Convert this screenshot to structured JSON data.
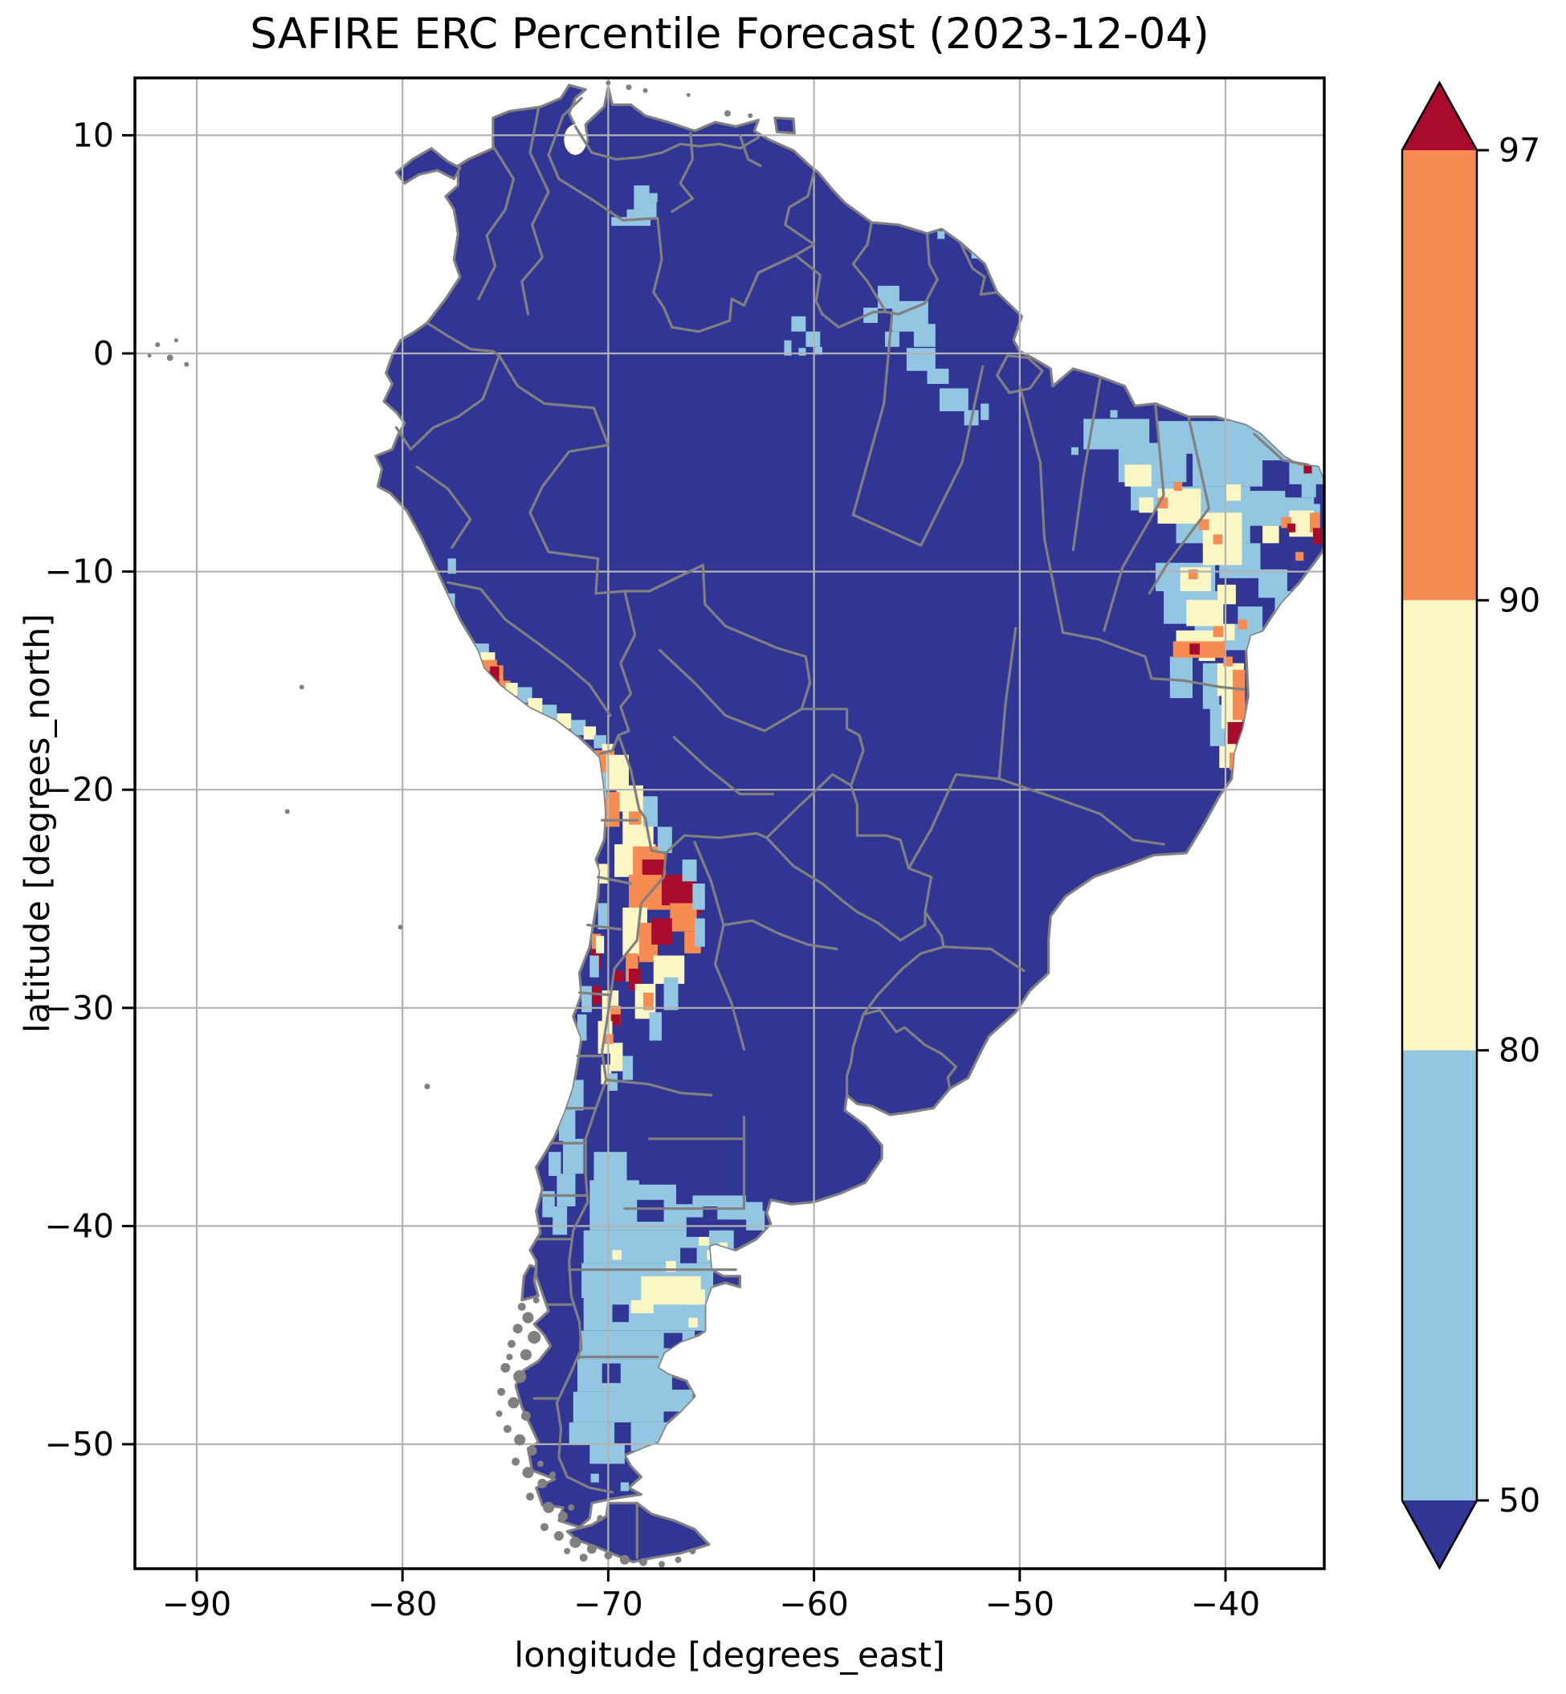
{
  "figure": {
    "title": "SAFIRE ERC Percentile Forecast (2023-12-04)",
    "xlabel": "longitude [degrees_east]",
    "ylabel": "latitude [degrees_north]"
  },
  "chart_data": {
    "type": "heatmap",
    "subtype": "geographic raster (pcolormesh) of ERC percentile classes over South America with admin boundaries",
    "title": "SAFIRE ERC Percentile Forecast (2023-12-04)",
    "date": "2023-12-04",
    "x_axis": {
      "label": "longitude [degrees_east]",
      "ticks": [
        -90,
        -80,
        -70,
        -60,
        -50,
        -40
      ],
      "range": [
        -93.0,
        -35.2
      ]
    },
    "y_axis": {
      "label": "latitude [degrees_north]",
      "ticks": [
        10,
        0,
        -10,
        -20,
        -30,
        -40,
        -50
      ],
      "range": [
        -55.7,
        12.6
      ]
    },
    "grid": true,
    "colorbar": {
      "tick_labels": [
        "97",
        "90",
        "80",
        "50"
      ],
      "levels": [
        50,
        80,
        90,
        97
      ],
      "extend": "both",
      "classes": [
        {
          "range": ">97",
          "color": "#a80b2b"
        },
        {
          "range": "90-97",
          "color": "#f68c51"
        },
        {
          "range": "80-90",
          "color": "#fbf7c4"
        },
        {
          "range": "50-80",
          "color": "#93c6e0"
        },
        {
          "range": "<50",
          "color": "#313695"
        }
      ]
    },
    "base_colors": {
      "land_below_50": "#313695",
      "boundaries": "#808080",
      "gridlines": "#b3b3b3",
      "ocean": "#ffffff",
      "spine": "#000000"
    },
    "hotspots": [
      "Atacama / NW Argentina Andes (about 66-71W, 18-33S): large 90-97 and >97 cluster",
      "Interior Northeast Brazil (about 36-47W, 3-18S): broad 50-90 area with 90-97 and >97 spots",
      "Coastal Bahia (about 39-40W, 14-18S): orange strip with >97 cells near 17.5S",
      "Southern Peru coast (about 75-76W, 14-15S): small orange / >97 cluster",
      "Patagonia (about 63-72W, 37-50S): broad 50-80 area with 80-90 patches near 42-43S",
      "Guianas / Amapa, southern Venezuela and Caribbean Colombia: scattered 50-80 cells"
    ],
    "cells": [
      [
        "B",
        -77.95,
        11.3,
        1.05,
        0.8
      ],
      [
        "B",
        -77.6,
        10.5,
        0.7,
        0.7
      ],
      [
        "B",
        -78.3,
        10.9,
        0.35,
        0.35
      ],
      [
        "B",
        -76.95,
        10.15,
        0.35,
        0.35
      ],
      [
        "B",
        -68.75,
        7.7,
        0.75,
        1.1
      ],
      [
        "B",
        -69.1,
        6.6,
        1.15,
        0.75
      ],
      [
        "B",
        -68.4,
        6.95,
        0.75,
        0.75
      ],
      [
        "B",
        -69.85,
        6.25,
        0.75,
        0.4
      ],
      [
        "B",
        -68.0,
        7.35,
        0.4,
        0.4
      ],
      [
        "B",
        -61.1,
        1.7,
        0.7,
        0.7
      ],
      [
        "B",
        -60.4,
        1.0,
        0.7,
        0.7
      ],
      [
        "B",
        -61.45,
        0.6,
        0.35,
        0.7
      ],
      [
        "B",
        -59.95,
        0.3,
        0.35,
        0.35
      ],
      [
        "B",
        -60.75,
        0.25,
        0.35,
        0.35
      ],
      [
        "B",
        -56.9,
        3.1,
        1.05,
        1.05
      ],
      [
        "B",
        -56.2,
        2.4,
        1.75,
        1.4
      ],
      [
        "B",
        -57.6,
        2.1,
        0.7,
        0.7
      ],
      [
        "B",
        -55.15,
        1.35,
        1.05,
        1.05
      ],
      [
        "B",
        -56.55,
        1.0,
        0.7,
        0.7
      ],
      [
        "B",
        -55.5,
        0.25,
        1.4,
        1.05
      ],
      [
        "B",
        -54.5,
        -0.7,
        1.05,
        0.7
      ],
      [
        "B",
        -53.9,
        -1.6,
        1.4,
        1.05
      ],
      [
        "B",
        -52.7,
        -2.6,
        0.7,
        0.7
      ],
      [
        "B",
        -51.9,
        -2.3,
        0.4,
        0.75
      ],
      [
        "B",
        -54.0,
        5.6,
        0.35,
        0.35
      ],
      [
        "B",
        -52.35,
        4.7,
        0.35,
        0.35
      ],
      [
        "B",
        -46.9,
        -3.0,
        3.2,
        1.4
      ],
      [
        "B",
        -45.2,
        -4.1,
        3.3,
        1.8
      ],
      [
        "B",
        -43.3,
        -3.1,
        4.6,
        1.5
      ],
      [
        "B",
        -41.6,
        -4.5,
        3.4,
        1.6
      ],
      [
        "B",
        -38.8,
        -3.5,
        2.0,
        1.4
      ],
      [
        "B",
        -36.9,
        -4.6,
        1.7,
        1.4
      ],
      [
        "B",
        -44.6,
        -5.9,
        2.1,
        1.3
      ],
      [
        "B",
        -42.4,
        -6.1,
        3.6,
        2.6
      ],
      [
        "B",
        -38.9,
        -6.3,
        1.8,
        1.6
      ],
      [
        "B",
        -37.3,
        -6.6,
        1.6,
        1.2
      ],
      [
        "B",
        -40.3,
        -8.7,
        2.0,
        1.6
      ],
      [
        "B",
        -43.4,
        -9.6,
        2.9,
        1.3
      ],
      [
        "B",
        -43.0,
        -10.9,
        2.6,
        1.5
      ],
      [
        "B",
        -41.5,
        -12.4,
        2.9,
        1.2
      ],
      [
        "B",
        -38.4,
        -9.9,
        1.4,
        1.3
      ],
      [
        "B",
        -37.6,
        -10.9,
        1.1,
        1.1
      ],
      [
        "B",
        -39.4,
        -11.6,
        1.2,
        1.7
      ],
      [
        "B",
        -42.7,
        -13.9,
        1.1,
        1.9
      ],
      [
        "B",
        -41.1,
        -14.2,
        0.8,
        2.1
      ],
      [
        "B",
        -40.75,
        -16.1,
        0.7,
        1.9
      ],
      [
        "B",
        -47.5,
        -4.3,
        0.35,
        0.35
      ],
      [
        "B",
        -45.6,
        -2.6,
        0.35,
        0.35
      ],
      [
        "B",
        -36.3,
        -5.9,
        0.7,
        0.7
      ],
      [
        "B",
        -35.9,
        -6.9,
        0.5,
        0.5
      ],
      [
        "Y",
        -44.9,
        -5.1,
        1.3,
        1.0
      ],
      [
        "Y",
        -43.3,
        -6.2,
        2.1,
        1.6
      ],
      [
        "Y",
        -41.1,
        -7.3,
        1.9,
        2.4
      ],
      [
        "Y",
        -42.2,
        -9.8,
        1.5,
        1.1
      ],
      [
        "Y",
        -41.9,
        -11.3,
        1.8,
        1.2
      ],
      [
        "Y",
        -40.4,
        -10.6,
        0.9,
        0.9
      ],
      [
        "Y",
        -42.4,
        -12.7,
        2.3,
        0.6
      ],
      [
        "Y",
        -40.3,
        -12.4,
        0.75,
        0.75
      ],
      [
        "Y",
        -36.9,
        -7.2,
        1.2,
        1.2
      ],
      [
        "Y",
        -38.2,
        -7.9,
        0.8,
        0.8
      ],
      [
        "Y",
        -40.0,
        -6.0,
        0.75,
        0.75
      ],
      [
        "Y",
        -44.2,
        -6.6,
        0.7,
        0.7
      ],
      [
        "Y",
        -40.4,
        -14.2,
        1.3,
        1.5
      ],
      [
        "Y",
        -40.2,
        -15.6,
        1.0,
        1.6
      ],
      [
        "Y",
        -40.0,
        -17.1,
        0.9,
        1.3
      ],
      [
        "Y",
        -41.3,
        -13.3,
        0.8,
        0.8
      ],
      [
        "Y",
        -40.3,
        -18.0,
        0.5,
        1.0
      ],
      [
        "O",
        -42.55,
        -13.2,
        2.5,
        0.75
      ],
      [
        "R",
        -41.75,
        -13.3,
        0.5,
        0.5
      ],
      [
        "O",
        -40.6,
        -12.5,
        0.5,
        0.5
      ],
      [
        "O",
        -43.3,
        -6.6,
        0.5,
        0.5
      ],
      [
        "O",
        -42.5,
        -5.9,
        0.4,
        0.4
      ],
      [
        "O",
        -41.3,
        -7.6,
        0.5,
        0.5
      ],
      [
        "O",
        -40.6,
        -8.3,
        0.45,
        0.45
      ],
      [
        "O",
        -41.8,
        -9.9,
        0.45,
        0.45
      ],
      [
        "O",
        -37.3,
        -7.5,
        0.5,
        0.5
      ],
      [
        "R",
        -37.0,
        -7.8,
        0.4,
        0.4
      ],
      [
        "O",
        -35.9,
        -7.3,
        0.5,
        0.9
      ],
      [
        "R",
        -35.75,
        -8.0,
        0.45,
        0.75
      ],
      [
        "O",
        -36.6,
        -9.1,
        0.4,
        0.4
      ],
      [
        "O",
        -39.65,
        -14.5,
        0.6,
        2.3
      ],
      [
        "O",
        -39.4,
        -12.2,
        0.45,
        0.45
      ],
      [
        "R",
        -39.9,
        -16.9,
        1.0,
        1.0
      ],
      [
        "R",
        -39.5,
        -17.8,
        0.6,
        0.5
      ],
      [
        "O",
        -39.8,
        -18.3,
        0.55,
        0.8
      ],
      [
        "O",
        -40.1,
        -13.9,
        0.45,
        0.45
      ],
      [
        "O",
        -36.5,
        -4.7,
        0.45,
        0.45
      ],
      [
        "R",
        -36.2,
        -5.1,
        0.4,
        0.4
      ],
      [
        "B",
        -76.6,
        -13.3,
        0.8,
        0.8
      ],
      [
        "Y",
        -76.2,
        -13.7,
        0.7,
        0.7
      ],
      [
        "O",
        -76.15,
        -14.05,
        0.75,
        0.5
      ],
      [
        "O",
        -75.6,
        -14.3,
        0.5,
        0.9
      ],
      [
        "R",
        -75.75,
        -14.35,
        0.45,
        0.8
      ],
      [
        "O",
        -75.2,
        -15.0,
        0.45,
        0.45
      ],
      [
        "Y",
        -75.0,
        -15.1,
        0.6,
        0.6
      ],
      [
        "B",
        -74.4,
        -15.3,
        0.7,
        0.7
      ],
      [
        "Y",
        -73.9,
        -15.8,
        0.7,
        0.7
      ],
      [
        "B",
        -73.2,
        -16.1,
        0.7,
        0.7
      ],
      [
        "Y",
        -72.5,
        -16.5,
        0.7,
        0.7
      ],
      [
        "B",
        -71.8,
        -16.8,
        0.7,
        0.7
      ],
      [
        "Y",
        -71.2,
        -17.1,
        0.6,
        0.6
      ],
      [
        "B",
        -70.7,
        -17.5,
        0.6,
        0.6
      ],
      [
        "Y",
        -70.3,
        -17.9,
        0.55,
        0.55
      ],
      [
        "B",
        -77.95,
        -11.0,
        0.5,
        0.7
      ],
      [
        "B",
        -77.8,
        -9.4,
        0.4,
        0.7
      ],
      [
        "O",
        -70.7,
        -18.2,
        1.0,
        1.3
      ],
      [
        "Y",
        -70.1,
        -18.4,
        1.1,
        1.6
      ],
      [
        "Y",
        -69.6,
        -19.8,
        1.3,
        1.2
      ],
      [
        "O",
        -70.35,
        -20.1,
        0.9,
        1.6
      ],
      [
        "Y",
        -69.3,
        -21.0,
        1.5,
        1.6
      ],
      [
        "O",
        -69.0,
        -21.0,
        0.6,
        0.6
      ],
      [
        "Y",
        -69.7,
        -22.5,
        2.0,
        1.5
      ],
      [
        "O",
        -68.8,
        -22.6,
        1.6,
        1.3
      ],
      [
        "R",
        -68.35,
        -23.2,
        1.1,
        0.9
      ],
      [
        "O",
        -69.0,
        -23.9,
        2.0,
        1.6
      ],
      [
        "R",
        -67.4,
        -23.9,
        1.6,
        1.4
      ],
      [
        "R",
        -66.6,
        -24.4,
        1.1,
        1.3
      ],
      [
        "O",
        -67.0,
        -25.2,
        1.3,
        1.3
      ],
      [
        "Y",
        -69.3,
        -25.4,
        1.2,
        2.2
      ],
      [
        "O",
        -68.5,
        -26.1,
        0.9,
        1.8
      ],
      [
        "R",
        -67.9,
        -25.9,
        1.0,
        1.2
      ],
      [
        "O",
        -66.3,
        -26.5,
        0.8,
        1.0
      ],
      [
        "Y",
        -67.8,
        -27.6,
        1.5,
        1.3
      ],
      [
        "O",
        -69.15,
        -27.5,
        0.6,
        1.3
      ],
      [
        "R",
        -69.0,
        -28.2,
        0.6,
        1.0
      ],
      [
        "Y",
        -68.7,
        -28.9,
        1.0,
        1.6
      ],
      [
        "O",
        -68.3,
        -29.3,
        0.5,
        0.8
      ],
      [
        "R",
        -69.75,
        -28.3,
        0.5,
        0.5
      ],
      [
        "Y",
        -70.3,
        -29.2,
        0.8,
        1.4
      ],
      [
        "O",
        -69.9,
        -29.9,
        0.5,
        0.9
      ],
      [
        "R",
        -69.85,
        -30.3,
        0.45,
        0.5
      ],
      [
        "Y",
        -70.5,
        -30.6,
        0.7,
        1.5
      ],
      [
        "Y",
        -69.9,
        -31.6,
        0.6,
        1.3
      ],
      [
        "O",
        -70.2,
        -31.2,
        0.45,
        0.45
      ],
      [
        "Y",
        -70.35,
        -32.6,
        0.5,
        0.9
      ],
      [
        "R",
        -70.85,
        -27.3,
        0.5,
        0.9
      ],
      [
        "O",
        -70.8,
        -26.6,
        0.45,
        0.7
      ],
      [
        "R",
        -70.9,
        -29.0,
        0.55,
        0.85
      ],
      [
        "B",
        -70.6,
        -19.2,
        0.5,
        1.2
      ],
      [
        "B",
        -68.3,
        -20.3,
        0.7,
        1.4
      ],
      [
        "B",
        -67.6,
        -21.7,
        0.7,
        1.2
      ],
      [
        "B",
        -66.4,
        -23.2,
        0.7,
        1.0
      ],
      [
        "B",
        -65.9,
        -24.3,
        0.6,
        1.2
      ],
      [
        "B",
        -65.8,
        -25.9,
        0.5,
        1.3
      ],
      [
        "B",
        -67.3,
        -28.6,
        0.7,
        1.5
      ],
      [
        "B",
        -68.0,
        -30.2,
        0.6,
        1.3
      ],
      [
        "B",
        -69.3,
        -32.2,
        0.5,
        1.1
      ],
      [
        "B",
        -70.0,
        -33.0,
        0.45,
        0.8
      ],
      [
        "Y",
        -70.45,
        -23.4,
        0.45,
        0.9
      ],
      [
        "B",
        -70.5,
        -25.2,
        0.45,
        1.2
      ],
      [
        "Y",
        -70.6,
        -26.7,
        0.4,
        0.8
      ],
      [
        "B",
        -70.9,
        -27.6,
        0.45,
        1.0
      ],
      [
        "B",
        -71.3,
        -29.0,
        0.5,
        1.2
      ],
      [
        "B",
        -71.5,
        -30.3,
        0.45,
        1.2
      ],
      [
        "B",
        -71.9,
        -31.0,
        0.5,
        1.0
      ],
      [
        "B",
        -72.1,
        -33.3,
        0.9,
        1.4
      ],
      [
        "B",
        -72.4,
        -34.6,
        0.8,
        1.5
      ],
      [
        "B",
        -72.2,
        -36.0,
        1.0,
        1.6
      ],
      [
        "B",
        -72.9,
        -36.6,
        0.6,
        1.1
      ],
      [
        "B",
        -72.5,
        -37.6,
        0.9,
        1.5
      ],
      [
        "B",
        -73.2,
        -38.4,
        0.6,
        1.2
      ],
      [
        "B",
        -72.7,
        -39.1,
        0.7,
        1.3
      ],
      [
        "B",
        -70.7,
        -36.6,
        1.6,
        1.4
      ],
      [
        "B",
        -70.9,
        -37.9,
        2.4,
        1.2
      ],
      [
        "B",
        -70.9,
        -39.0,
        5.0,
        1.2
      ],
      [
        "B",
        -69.9,
        -38.1,
        3.2,
        1.0
      ],
      [
        "B",
        -65.9,
        -38.6,
        2.6,
        1.1
      ],
      [
        "B",
        -63.9,
        -38.9,
        1.4,
        0.8
      ],
      [
        "B",
        -63.3,
        -39.3,
        0.9,
        0.9
      ],
      [
        "B",
        -71.2,
        -40.2,
        7.3,
        1.5
      ],
      [
        "B",
        -71.3,
        -41.7,
        6.4,
        1.6
      ],
      [
        "B",
        -71.2,
        -43.3,
        6.0,
        1.5
      ],
      [
        "B",
        -71.4,
        -44.8,
        5.6,
        1.3
      ],
      [
        "B",
        -71.5,
        -46.1,
        4.6,
        1.5
      ],
      [
        "B",
        -71.7,
        -47.6,
        4.4,
        1.4
      ],
      [
        "B",
        -69.5,
        -47.3,
        2.1,
        1.1
      ],
      [
        "B",
        -67.4,
        -47.5,
        1.5,
        1.0
      ],
      [
        "B",
        -68.9,
        -49.0,
        2.3,
        1.3
      ],
      [
        "B",
        -71.9,
        -49.0,
        2.2,
        1.0
      ],
      [
        "B",
        -70.9,
        -50.0,
        1.7,
        0.9
      ],
      [
        "B",
        -68.6,
        -50.1,
        1.5,
        0.8
      ],
      [
        "B",
        -70.85,
        -51.35,
        0.4,
        0.4
      ],
      [
        "B",
        -69.4,
        -51.75,
        0.4,
        0.4
      ],
      [
        "Y",
        -68.4,
        -42.3,
        2.9,
        1.3
      ],
      [
        "Y",
        -66.2,
        -42.9,
        0.9,
        0.7
      ],
      [
        "Y",
        -68.9,
        -43.4,
        1.1,
        0.6
      ],
      [
        "Y",
        -65.6,
        -40.4,
        0.5,
        0.5
      ],
      [
        "Y",
        -65.2,
        -41.1,
        0.45,
        0.45
      ],
      [
        "Y",
        -64.6,
        -40.75,
        0.4,
        0.4
      ],
      [
        "Y",
        -66.1,
        -44.2,
        0.45,
        0.45
      ],
      [
        "Y",
        -67.2,
        -41.6,
        0.5,
        0.5
      ],
      [
        "Y",
        -69.8,
        -41.1,
        0.45,
        0.45
      ],
      [
        "D",
        -68.6,
        -38.8,
        1.3,
        1.0
      ],
      [
        "D",
        -66.2,
        -39.6,
        1.1,
        0.9
      ],
      [
        "D",
        -69.8,
        -43.6,
        0.8,
        0.8
      ],
      [
        "D",
        -67.3,
        -44.9,
        0.9,
        0.7
      ],
      [
        "D",
        -70.3,
        -46.3,
        0.9,
        0.9
      ],
      [
        "D",
        -66.5,
        -41.0,
        0.8,
        0.7
      ],
      [
        "D",
        -65.4,
        -39.1,
        0.7,
        0.6
      ]
    ]
  }
}
